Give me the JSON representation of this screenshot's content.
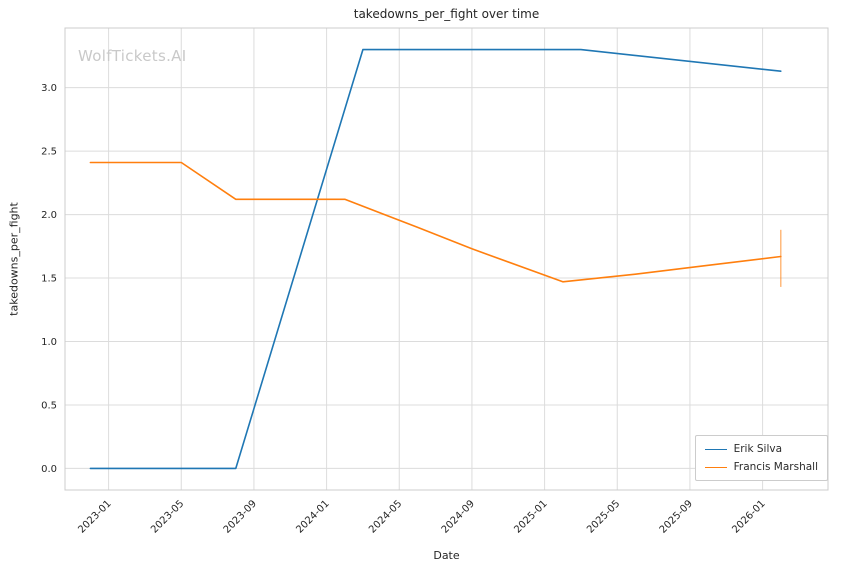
{
  "watermark": "WolfTickets.AI",
  "chart_data": {
    "type": "line",
    "title": "takedowns_per_fight over time",
    "xlabel": "Date",
    "ylabel": "takedowns_per_fight",
    "xlim": [
      2022.8,
      2026.3
    ],
    "ylim": [
      -0.17,
      3.47
    ],
    "grid": true,
    "legend_position": "lower right",
    "x_ticks": [
      "2023-01",
      "2023-05",
      "2023-09",
      "2024-01",
      "2024-05",
      "2024-09",
      "2025-01",
      "2025-05",
      "2025-09",
      "2026-01"
    ],
    "y_ticks": [
      0.0,
      0.5,
      1.0,
      1.5,
      2.0,
      2.5,
      3.0
    ],
    "series": [
      {
        "name": "Erik Silva",
        "color": "#1f77b4",
        "points": [
          [
            "2022-12",
            0.0
          ],
          [
            "2023-08",
            0.0
          ],
          [
            "2024-03",
            3.3
          ],
          [
            "2025-03",
            3.3
          ],
          [
            "2026-02",
            3.13
          ]
        ]
      },
      {
        "name": "Francis Marshall",
        "color": "#ff7f0e",
        "points": [
          [
            "2022-12",
            2.41
          ],
          [
            "2023-05",
            2.41
          ],
          [
            "2023-08",
            2.12
          ],
          [
            "2024-02",
            2.12
          ],
          [
            "2024-06",
            1.9
          ],
          [
            "2024-09",
            1.73
          ],
          [
            "2025-02",
            1.47
          ],
          [
            "2025-06",
            1.53
          ],
          [
            "2025-10",
            1.6
          ],
          [
            "2026-02",
            1.67
          ]
        ],
        "error_bar": {
          "x": "2026-02",
          "low": 1.43,
          "high": 1.88
        }
      }
    ]
  }
}
